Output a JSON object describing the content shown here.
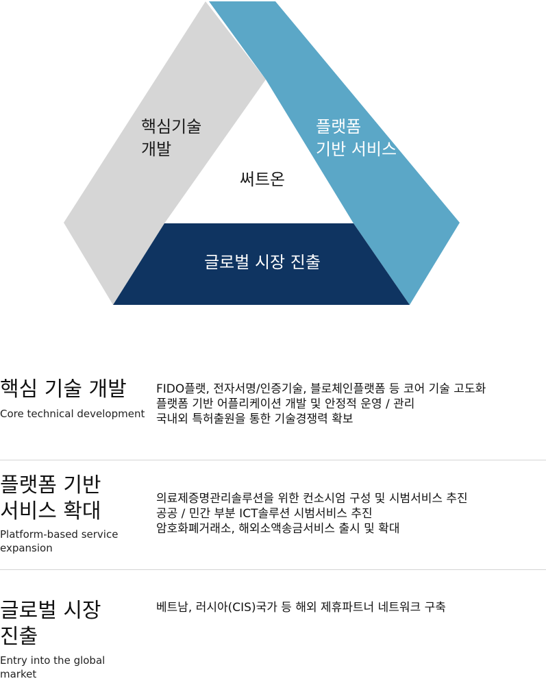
{
  "diagram": {
    "left_label": [
      "핵심기술",
      "개발"
    ],
    "right_label": [
      "플랫폼",
      "기반 서비스"
    ],
    "bottom_label": "글로벌 시장 진출",
    "center_label": "써트온",
    "colors": {
      "left": "#d6d6d6",
      "right": "#5ba7c7",
      "bottom": "#0f3461",
      "text_dark": "#1b1b1b",
      "text_light": "#ffffff"
    }
  },
  "rows": [
    {
      "title": "핵심 기술 개발",
      "subtitle": "Core technical development",
      "items": [
        "FIDO플랫, 전자서명/인증기술, 블로체인플랫폼 등 코어 기술 고도화",
        "플랫폼 기반 어플리케이션 개발 및 안정적 운영 / 관리",
        "국내외 특허출원을 통한 기술경쟁력 확보"
      ]
    },
    {
      "title": "플랫폼 기반\n서비스 확대",
      "subtitle": "Platform-based service\nexpansion",
      "items": [
        "의료제증명관리솔루션을 위한 컨소시엄 구성 및 시범서비스 추진",
        "공공 / 민간 부분 ICT솔루션 시범서비스 추진",
        "암호화폐거래소, 해외소액송금서비스 출시 및 확대"
      ]
    },
    {
      "title": "글로벌 시장\n진출",
      "subtitle": "Entry into the global\nmarket",
      "items": [
        "베트남, 러시아(CIS)국가 등 해외 제휴파트너 네트워크 구축"
      ]
    }
  ]
}
